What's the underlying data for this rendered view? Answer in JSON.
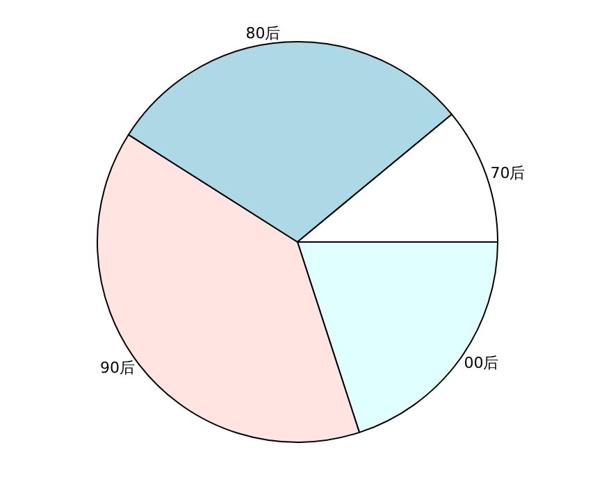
{
  "chart_data": {
    "type": "pie",
    "categories": [
      "70后",
      "80后",
      "90后",
      "00后"
    ],
    "values": [
      11,
      30,
      39,
      20
    ],
    "colors": [
      "#ffffff",
      "#add8e6",
      "#ffe4e1",
      "#e0ffff"
    ]
  }
}
